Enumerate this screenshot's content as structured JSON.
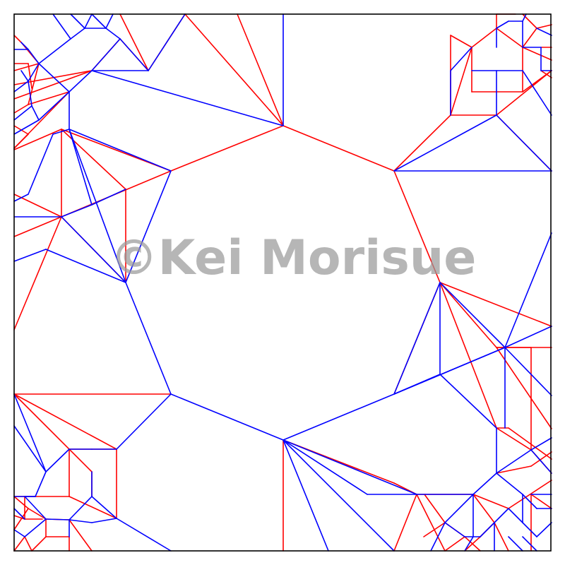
{
  "watermark": {
    "text": "©Kei Morisue"
  },
  "colors": {
    "mountain": "#ff0000",
    "valley": "#0000ff",
    "border": "#000000",
    "watermark": "#9a9a9a"
  },
  "crease_pattern": {
    "mountain": [
      [
        401,
        178,
        242,
        242
      ],
      [
        242,
        242,
        87,
        183
      ],
      [
        87,
        183,
        20,
        212
      ],
      [
        242,
        242,
        87,
        307
      ],
      [
        87,
        307,
        20,
        335
      ],
      [
        87,
        307,
        20,
        275
      ],
      [
        87,
        307,
        178,
        400
      ],
      [
        87,
        307,
        87,
        183
      ],
      [
        87,
        183,
        178,
        268
      ],
      [
        178,
        268,
        178,
        400
      ],
      [
        87,
        307,
        20,
        467
      ],
      [
        401,
        178,
        558,
        242
      ],
      [
        558,
        242,
        638,
        163
      ],
      [
        638,
        163,
        703,
        163
      ],
      [
        703,
        163,
        781,
        242
      ],
      [
        558,
        242,
        623,
        400
      ],
      [
        623,
        400,
        781,
        462
      ],
      [
        623,
        400,
        558,
        558
      ],
      [
        623,
        400,
        703,
        606
      ],
      [
        623,
        400,
        703,
        492
      ],
      [
        703,
        492,
        781,
        492
      ],
      [
        703,
        492,
        781,
        607
      ],
      [
        703,
        492,
        752,
        492
      ],
      [
        752,
        492,
        752,
        637
      ],
      [
        401,
        623,
        558,
        684
      ],
      [
        558,
        684,
        590,
        700
      ],
      [
        590,
        700,
        670,
        700
      ],
      [
        590,
        700,
        630,
        780
      ],
      [
        590,
        700,
        558,
        780
      ],
      [
        401,
        623,
        401,
        780
      ],
      [
        242,
        558,
        20,
        558
      ],
      [
        20,
        558,
        165,
        636
      ],
      [
        165,
        636,
        165,
        734
      ],
      [
        165,
        636,
        98,
        636
      ],
      [
        98,
        636,
        98,
        703
      ],
      [
        98,
        703,
        20,
        703
      ],
      [
        98,
        703,
        165,
        734
      ],
      [
        20,
        558,
        130,
        668
      ],
      [
        130,
        668,
        130,
        703
      ],
      [
        401,
        178,
        336,
        20
      ],
      [
        401,
        178,
        262,
        20
      ],
      [
        262,
        20,
        210,
        100
      ],
      [
        210,
        100,
        170,
        20
      ],
      [
        210,
        100,
        170,
        55
      ],
      [
        170,
        55,
        130,
        100
      ],
      [
        130,
        100,
        20,
        140
      ],
      [
        130,
        100,
        20,
        120
      ],
      [
        98,
        130,
        40,
        148
      ],
      [
        98,
        130,
        20,
        210
      ],
      [
        20,
        210,
        40,
        190
      ],
      [
        40,
        190,
        20,
        178
      ],
      [
        40,
        148,
        20,
        160
      ],
      [
        40,
        148,
        55,
        90
      ],
      [
        55,
        90,
        20,
        100
      ],
      [
        55,
        90,
        30,
        60
      ],
      [
        30,
        60,
        20,
        50
      ],
      [
        20,
        90,
        40,
        90
      ],
      [
        40,
        90,
        45,
        125
      ],
      [
        638,
        163,
        638,
        50
      ],
      [
        638,
        50,
        668,
        67
      ],
      [
        668,
        67,
        703,
        40
      ],
      [
        668,
        67,
        638,
        163
      ],
      [
        703,
        40,
        703,
        20
      ],
      [
        703,
        40,
        740,
        67
      ],
      [
        740,
        67,
        740,
        130
      ],
      [
        740,
        67,
        781,
        85
      ],
      [
        740,
        130,
        703,
        130
      ],
      [
        703,
        130,
        668,
        130
      ],
      [
        668,
        130,
        668,
        67
      ],
      [
        703,
        20,
        730,
        20
      ],
      [
        740,
        20,
        760,
        40
      ],
      [
        760,
        40,
        781,
        35
      ],
      [
        760,
        40,
        740,
        67
      ],
      [
        766,
        67,
        781,
        67
      ],
      [
        766,
        100,
        781,
        110
      ],
      [
        740,
        130,
        781,
        100
      ],
      [
        703,
        163,
        781,
        100
      ],
      [
        703,
        606,
        752,
        637
      ],
      [
        703,
        606,
        720,
        606
      ],
      [
        720,
        606,
        781,
        650
      ],
      [
        752,
        637,
        781,
        670
      ],
      [
        703,
        670,
        752,
        660
      ],
      [
        752,
        660,
        781,
        640
      ],
      [
        720,
        720,
        781,
        680
      ],
      [
        752,
        700,
        781,
        720
      ],
      [
        752,
        700,
        752,
        780
      ],
      [
        670,
        700,
        720,
        720
      ],
      [
        670,
        700,
        700,
        740
      ],
      [
        700,
        740,
        720,
        780
      ],
      [
        700,
        740,
        680,
        760
      ],
      [
        680,
        760,
        658,
        780
      ],
      [
        630,
        780,
        658,
        760
      ],
      [
        658,
        760,
        680,
        780
      ],
      [
        630,
        740,
        658,
        760
      ],
      [
        600,
        760,
        630,
        740
      ],
      [
        601,
        700,
        630,
        740
      ],
      [
        20,
        703,
        40,
        720
      ],
      [
        40,
        720,
        20,
        750
      ],
      [
        40,
        720,
        65,
        735
      ],
      [
        65,
        735,
        98,
        736
      ],
      [
        98,
        736,
        130,
        780
      ],
      [
        65,
        735,
        65,
        760
      ],
      [
        65,
        760,
        45,
        780
      ],
      [
        65,
        760,
        98,
        760
      ],
      [
        98,
        760,
        98,
        780
      ],
      [
        35,
        703,
        35,
        735
      ],
      [
        35,
        735,
        60,
        735
      ],
      [
        20,
        730,
        35,
        735
      ],
      [
        45,
        780,
        35,
        760
      ],
      [
        35,
        760,
        20,
        780
      ]
    ],
    "valley": [
      [
        401,
        178,
        401,
        20
      ],
      [
        401,
        178,
        130,
        100
      ],
      [
        130,
        100,
        98,
        130
      ],
      [
        98,
        130,
        98,
        183
      ],
      [
        98,
        183,
        242,
        242
      ],
      [
        242,
        242,
        178,
        400
      ],
      [
        178,
        400,
        87,
        307
      ],
      [
        87,
        307,
        20,
        307
      ],
      [
        178,
        400,
        65,
        353
      ],
      [
        65,
        353,
        20,
        370
      ],
      [
        178,
        400,
        98,
        183
      ],
      [
        98,
        183,
        75,
        190
      ],
      [
        75,
        190,
        40,
        275
      ],
      [
        40,
        275,
        20,
        285
      ],
      [
        98,
        183,
        130,
        290
      ],
      [
        130,
        290,
        87,
        307
      ],
      [
        130,
        290,
        178,
        268
      ],
      [
        178,
        400,
        242,
        558
      ],
      [
        242,
        558,
        401,
        623
      ],
      [
        401,
        623,
        558,
        558
      ],
      [
        558,
        558,
        623,
        400
      ],
      [
        623,
        400,
        623,
        530
      ],
      [
        623,
        530,
        558,
        558
      ],
      [
        623,
        400,
        715,
        492
      ],
      [
        715,
        492,
        781,
        462
      ],
      [
        715,
        492,
        781,
        560
      ],
      [
        715,
        492,
        715,
        606
      ],
      [
        715,
        492,
        558,
        558
      ],
      [
        623,
        530,
        703,
        606
      ],
      [
        558,
        558,
        715,
        492
      ],
      [
        715,
        492,
        781,
        330
      ],
      [
        558,
        242,
        781,
        242
      ],
      [
        558,
        242,
        703,
        163
      ],
      [
        703,
        163,
        703,
        100
      ],
      [
        703,
        100,
        740,
        100
      ],
      [
        740,
        100,
        781,
        163
      ],
      [
        703,
        100,
        668,
        100
      ],
      [
        638,
        163,
        638,
        100
      ],
      [
        638,
        100,
        668,
        67
      ],
      [
        703,
        163,
        781,
        242
      ],
      [
        703,
        67,
        703,
        40
      ],
      [
        703,
        40,
        720,
        30
      ],
      [
        720,
        30,
        740,
        30
      ],
      [
        740,
        30,
        740,
        67
      ],
      [
        740,
        67,
        766,
        67
      ],
      [
        766,
        67,
        766,
        100
      ],
      [
        766,
        100,
        781,
        100
      ],
      [
        760,
        40,
        781,
        50
      ],
      [
        740,
        30,
        745,
        20
      ],
      [
        401,
        623,
        590,
        700
      ],
      [
        401,
        623,
        465,
        780
      ],
      [
        401,
        623,
        558,
        780
      ],
      [
        401,
        623,
        520,
        700
      ],
      [
        520,
        700,
        590,
        700
      ],
      [
        590,
        700,
        670,
        700
      ],
      [
        670,
        700,
        703,
        670
      ],
      [
        703,
        670,
        703,
        606
      ],
      [
        703,
        670,
        740,
        700
      ],
      [
        740,
        700,
        760,
        720
      ],
      [
        760,
        720,
        781,
        720
      ],
      [
        703,
        670,
        752,
        637
      ],
      [
        752,
        637,
        781,
        670
      ],
      [
        752,
        637,
        781,
        620
      ],
      [
        752,
        700,
        781,
        700
      ],
      [
        740,
        700,
        740,
        740
      ],
      [
        740,
        740,
        760,
        760
      ],
      [
        760,
        760,
        781,
        740
      ],
      [
        670,
        700,
        630,
        740
      ],
      [
        630,
        740,
        658,
        760
      ],
      [
        658,
        760,
        680,
        760
      ],
      [
        680,
        760,
        700,
        740
      ],
      [
        700,
        740,
        720,
        720
      ],
      [
        720,
        720,
        740,
        740
      ],
      [
        630,
        740,
        610,
        780
      ],
      [
        670,
        700,
        670,
        760
      ],
      [
        670,
        760,
        658,
        780
      ],
      [
        700,
        740,
        700,
        780
      ],
      [
        720,
        760,
        740,
        780
      ],
      [
        740,
        760,
        760,
        780
      ],
      [
        242,
        558,
        165,
        636
      ],
      [
        165,
        636,
        130,
        636
      ],
      [
        130,
        636,
        98,
        636
      ],
      [
        98,
        636,
        65,
        668
      ],
      [
        65,
        668,
        20,
        603
      ],
      [
        20,
        558,
        65,
        668
      ],
      [
        65,
        668,
        50,
        703
      ],
      [
        50,
        703,
        20,
        703
      ],
      [
        130,
        668,
        130,
        703
      ],
      [
        130,
        703,
        98,
        736
      ],
      [
        98,
        736,
        65,
        735
      ],
      [
        65,
        735,
        35,
        703
      ],
      [
        35,
        703,
        50,
        703
      ],
      [
        130,
        703,
        165,
        734
      ],
      [
        165,
        734,
        242,
        780
      ],
      [
        165,
        734,
        130,
        740
      ],
      [
        130,
        740,
        98,
        736
      ],
      [
        98,
        736,
        98,
        760
      ],
      [
        65,
        735,
        35,
        760
      ],
      [
        35,
        760,
        20,
        750
      ],
      [
        35,
        735,
        20,
        720
      ],
      [
        130,
        100,
        170,
        55
      ],
      [
        170,
        55,
        210,
        100
      ],
      [
        210,
        100,
        262,
        20
      ],
      [
        210,
        100,
        130,
        100
      ],
      [
        170,
        55,
        150,
        40
      ],
      [
        150,
        40,
        130,
        20
      ],
      [
        150,
        40,
        120,
        40
      ],
      [
        120,
        40,
        100,
        20
      ],
      [
        120,
        40,
        100,
        55
      ],
      [
        100,
        55,
        75,
        20
      ],
      [
        100,
        55,
        55,
        90
      ],
      [
        55,
        90,
        40,
        115
      ],
      [
        40,
        115,
        20,
        130
      ],
      [
        40,
        115,
        45,
        150
      ],
      [
        45,
        150,
        20,
        170
      ],
      [
        55,
        90,
        98,
        130
      ],
      [
        98,
        130,
        55,
        170
      ],
      [
        55,
        170,
        20,
        190
      ],
      [
        40,
        70,
        20,
        70
      ],
      [
        40,
        70,
        55,
        90
      ],
      [
        30,
        60,
        40,
        70
      ],
      [
        130,
        20,
        120,
        40
      ],
      [
        160,
        20,
        150,
        40
      ],
      [
        30,
        100,
        40,
        115
      ],
      [
        45,
        150,
        55,
        170
      ]
    ]
  }
}
